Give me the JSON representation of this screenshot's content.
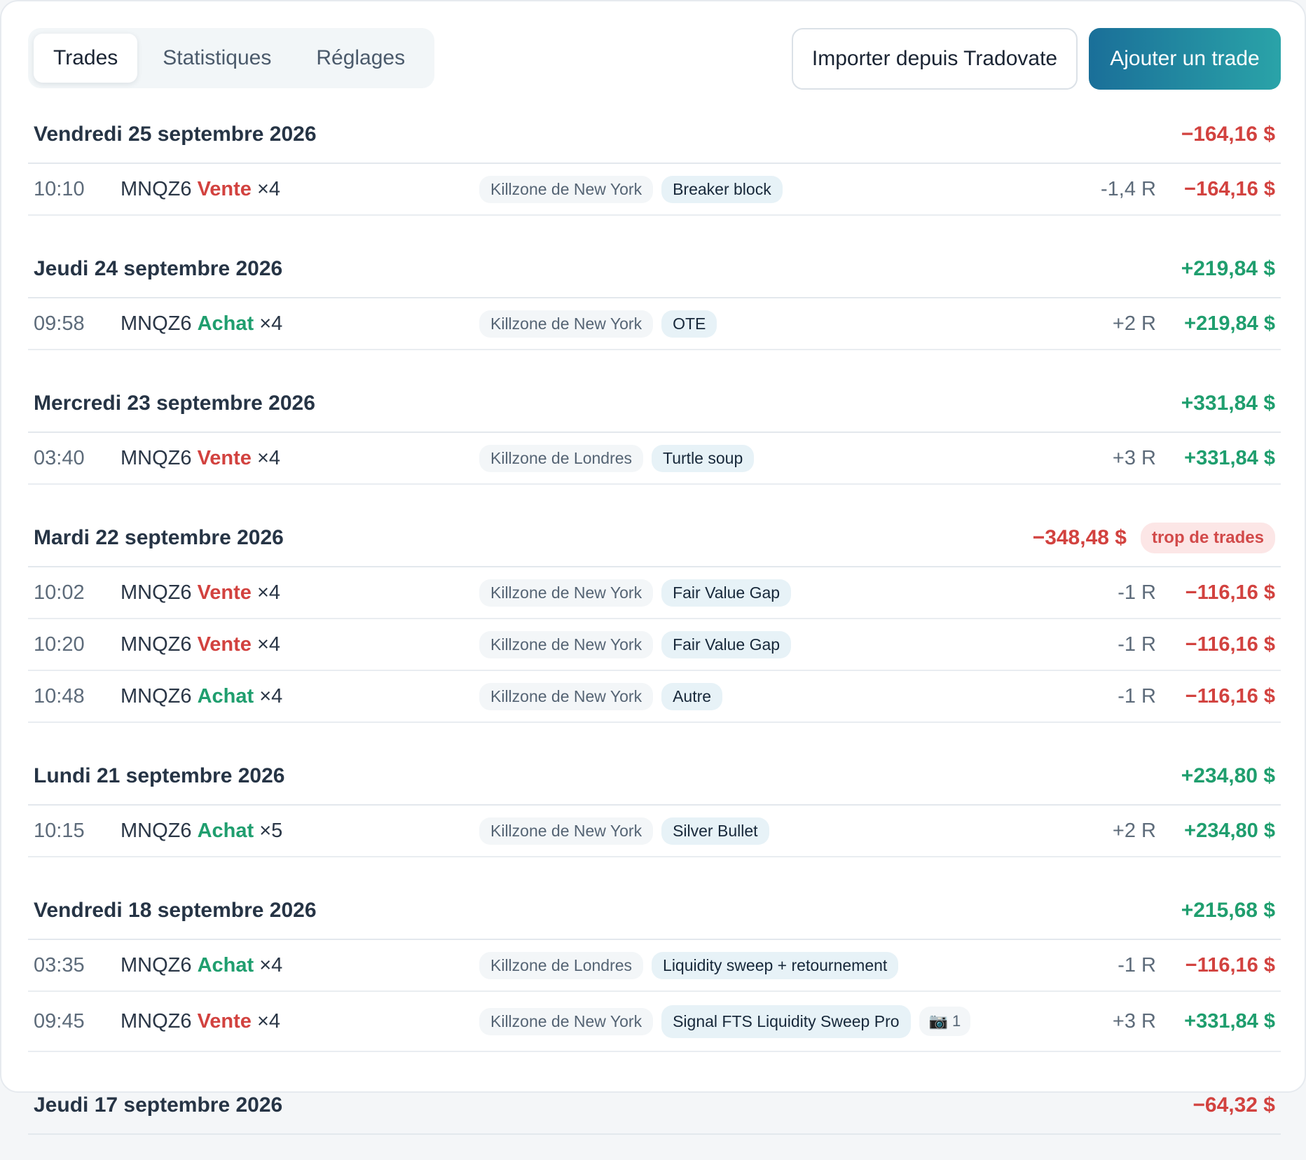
{
  "tabs": [
    {
      "label": "Trades",
      "active": true
    },
    {
      "label": "Statistiques",
      "active": false
    },
    {
      "label": "Réglages",
      "active": false
    }
  ],
  "actions": {
    "import_label": "Importer depuis Tradovate",
    "add_label": "Ajouter un trade"
  },
  "colors": {
    "negative": "#d2423f",
    "positive": "#1f9e6e",
    "accent_start": "#1a6f99",
    "accent_end": "#2aa3a8"
  },
  "days": [
    {
      "date": "Vendredi 25 septembre 2026",
      "total": "−164,16 $",
      "total_sign": "neg",
      "trades": [
        {
          "time": "10:10",
          "symbol": "MNQZ6",
          "direction": "Vente",
          "dir_sign": "neg",
          "qty": "×4",
          "session": "Killzone de New York",
          "setup": "Breaker block",
          "r": "-1,4 R",
          "pnl": "−164,16 $",
          "pnl_sign": "neg"
        }
      ]
    },
    {
      "date": "Jeudi 24 septembre 2026",
      "total": "+219,84 $",
      "total_sign": "pos",
      "trades": [
        {
          "time": "09:58",
          "symbol": "MNQZ6",
          "direction": "Achat",
          "dir_sign": "pos",
          "qty": "×4",
          "session": "Killzone de New York",
          "setup": "OTE",
          "r": "+2 R",
          "pnl": "+219,84 $",
          "pnl_sign": "pos"
        }
      ]
    },
    {
      "date": "Mercredi 23 septembre 2026",
      "total": "+331,84 $",
      "total_sign": "pos",
      "trades": [
        {
          "time": "03:40",
          "symbol": "MNQZ6",
          "direction": "Vente",
          "dir_sign": "neg",
          "qty": "×4",
          "session": "Killzone de Londres",
          "setup": "Turtle soup",
          "r": "+3 R",
          "pnl": "+331,84 $",
          "pnl_sign": "pos"
        }
      ]
    },
    {
      "date": "Mardi 22 septembre 2026",
      "total": "−348,48 $",
      "total_sign": "neg",
      "badge": "trop de trades",
      "trades": [
        {
          "time": "10:02",
          "symbol": "MNQZ6",
          "direction": "Vente",
          "dir_sign": "neg",
          "qty": "×4",
          "session": "Killzone de New York",
          "setup": "Fair Value Gap",
          "r": "-1 R",
          "pnl": "−116,16 $",
          "pnl_sign": "neg"
        },
        {
          "time": "10:20",
          "symbol": "MNQZ6",
          "direction": "Vente",
          "dir_sign": "neg",
          "qty": "×4",
          "session": "Killzone de New York",
          "setup": "Fair Value Gap",
          "r": "-1 R",
          "pnl": "−116,16 $",
          "pnl_sign": "neg"
        },
        {
          "time": "10:48",
          "symbol": "MNQZ6",
          "direction": "Achat",
          "dir_sign": "pos",
          "qty": "×4",
          "session": "Killzone de New York",
          "setup": "Autre",
          "r": "-1 R",
          "pnl": "−116,16 $",
          "pnl_sign": "neg"
        }
      ]
    },
    {
      "date": "Lundi 21 septembre 2026",
      "total": "+234,80 $",
      "total_sign": "pos",
      "trades": [
        {
          "time": "10:15",
          "symbol": "MNQZ6",
          "direction": "Achat",
          "dir_sign": "pos",
          "qty": "×5",
          "session": "Killzone de New York",
          "setup": "Silver Bullet",
          "r": "+2 R",
          "pnl": "+234,80 $",
          "pnl_sign": "pos"
        }
      ]
    },
    {
      "date": "Vendredi 18 septembre 2026",
      "total": "+215,68 $",
      "total_sign": "pos",
      "trades": [
        {
          "time": "03:35",
          "symbol": "MNQZ6",
          "direction": "Achat",
          "dir_sign": "pos",
          "qty": "×4",
          "session": "Killzone de Londres",
          "setup": "Liquidity sweep + retournement",
          "r": "-1 R",
          "pnl": "−116,16 $",
          "pnl_sign": "neg"
        },
        {
          "time": "09:45",
          "symbol": "MNQZ6",
          "direction": "Vente",
          "dir_sign": "neg",
          "qty": "×4",
          "session": "Killzone de New York",
          "setup": "Signal FTS Liquidity Sweep Pro",
          "screenshots": "1",
          "screenshot_icon": "camera-icon",
          "r": "+3 R",
          "pnl": "+331,84 $",
          "pnl_sign": "pos"
        }
      ]
    },
    {
      "date": "Jeudi 17 septembre 2026",
      "total": "−64,32 $",
      "total_sign": "neg",
      "trades": []
    }
  ]
}
